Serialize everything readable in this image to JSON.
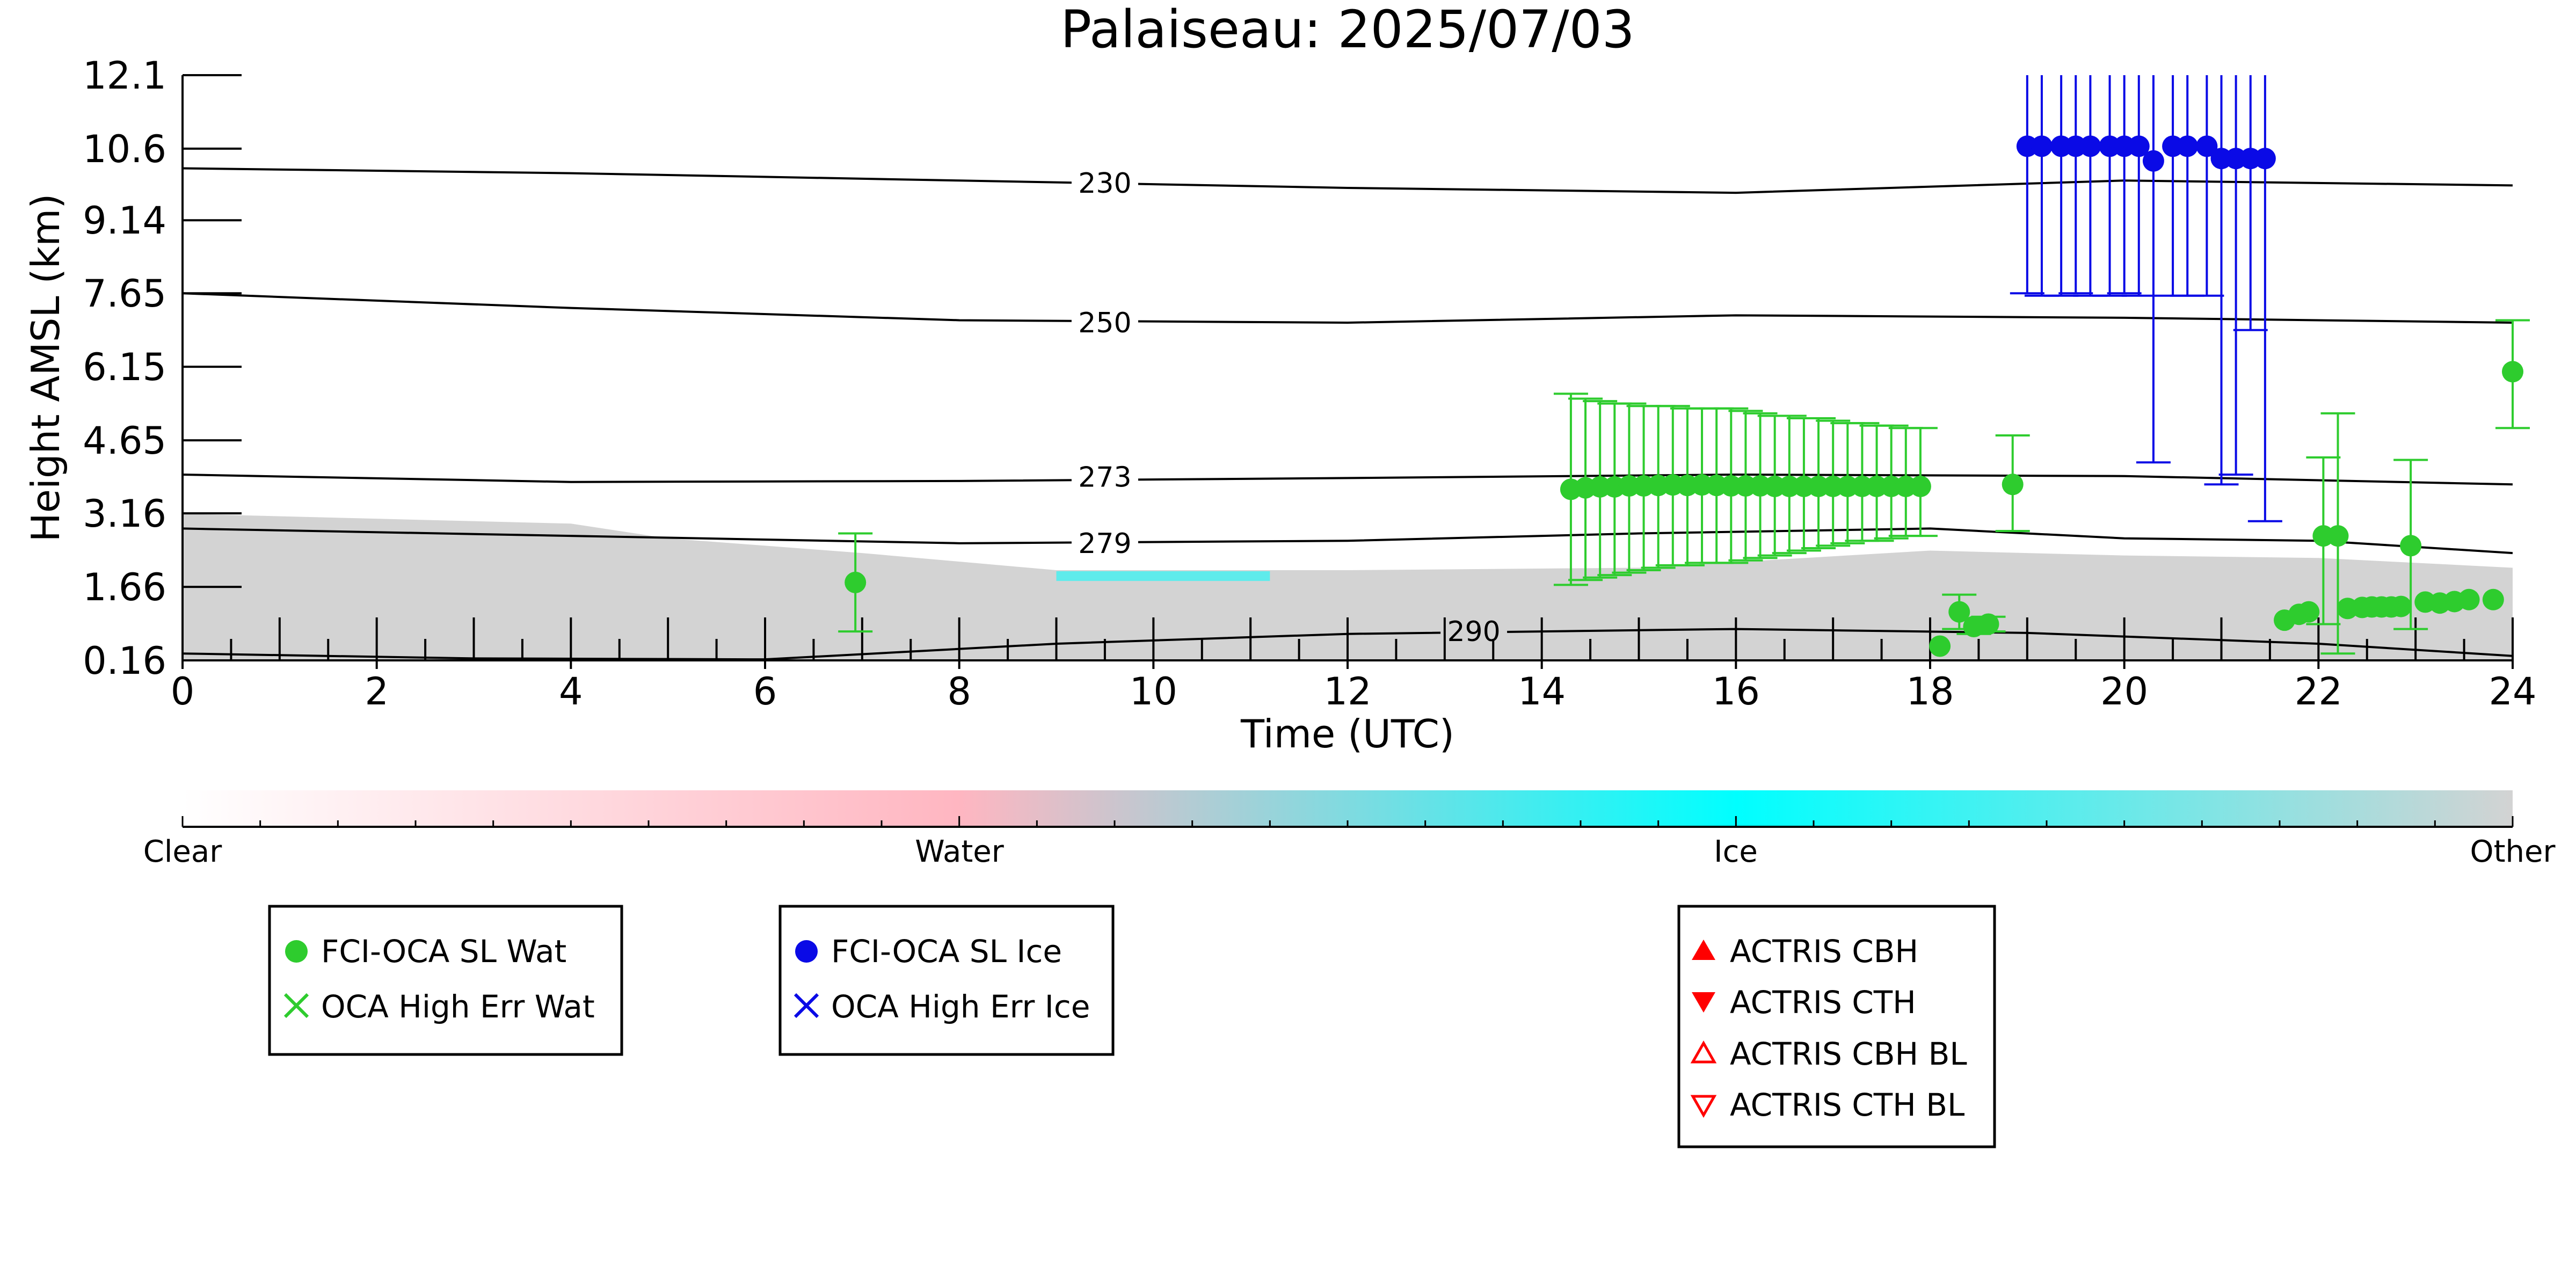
{
  "chart_data": {
    "type": "scatter",
    "title": "Palaiseau: 2025/07/03",
    "xlabel": "Time (UTC)",
    "ylabel": "Height AMSL (km)",
    "xlim": [
      0,
      24
    ],
    "ylim": [
      0.16,
      12.1
    ],
    "x_ticks": [
      "0",
      "2",
      "4",
      "6",
      "8",
      "10",
      "12",
      "14",
      "16",
      "18",
      "20",
      "22",
      "24"
    ],
    "y_ticks": [
      "0.16",
      "1.66",
      "3.16",
      "4.65",
      "6.15",
      "7.65",
      "9.14",
      "10.6",
      "12.1"
    ],
    "y_tick_values": [
      0.16,
      1.66,
      3.16,
      4.65,
      6.15,
      7.65,
      9.14,
      10.6,
      12.1
    ],
    "grid": false,
    "temperature_contours": [
      {
        "label": "230",
        "label_at": [
          9.5,
          9.9
        ],
        "points": [
          [
            0,
            10.2
          ],
          [
            4,
            10.1
          ],
          [
            8,
            9.95
          ],
          [
            12,
            9.8
          ],
          [
            16,
            9.7
          ],
          [
            20,
            9.95
          ],
          [
            24,
            9.85
          ]
        ]
      },
      {
        "label": "250",
        "label_at": [
          9.5,
          7.05
        ],
        "points": [
          [
            0,
            7.65
          ],
          [
            4,
            7.35
          ],
          [
            8,
            7.1
          ],
          [
            12,
            7.05
          ],
          [
            16,
            7.2
          ],
          [
            20,
            7.15
          ],
          [
            24,
            7.05
          ]
        ]
      },
      {
        "label": "273",
        "label_at": [
          9.5,
          3.9
        ],
        "points": [
          [
            0,
            3.95
          ],
          [
            4,
            3.8
          ],
          [
            8,
            3.82
          ],
          [
            12,
            3.88
          ],
          [
            16,
            3.95
          ],
          [
            20,
            3.92
          ],
          [
            24,
            3.75
          ]
        ]
      },
      {
        "label": "279",
        "label_at": [
          9.5,
          2.55
        ],
        "points": [
          [
            0,
            2.85
          ],
          [
            4,
            2.7
          ],
          [
            8,
            2.55
          ],
          [
            12,
            2.6
          ],
          [
            15,
            2.75
          ],
          [
            18,
            2.85
          ],
          [
            20,
            2.65
          ],
          [
            22,
            2.6
          ],
          [
            24,
            2.35
          ]
        ]
      },
      {
        "label": "290",
        "label_at": [
          13.3,
          0.75
        ],
        "points": [
          [
            0,
            0.3
          ],
          [
            3,
            0.2
          ],
          [
            6,
            0.18
          ],
          [
            9,
            0.5
          ],
          [
            12,
            0.7
          ],
          [
            16,
            0.8
          ],
          [
            19,
            0.72
          ],
          [
            22,
            0.5
          ],
          [
            24,
            0.25
          ]
        ]
      }
    ],
    "series": [
      {
        "name": "FCI-OCA SL Wat",
        "color": "#2ecc2e",
        "marker": "circle",
        "points": [
          {
            "x": 6.93,
            "y": 1.75,
            "lo": 0.75,
            "hi": 2.75
          },
          {
            "x": 14.3,
            "y": 3.65,
            "lo": 1.7,
            "hi": 5.6
          },
          {
            "x": 14.45,
            "y": 3.68,
            "lo": 1.8,
            "hi": 5.5
          },
          {
            "x": 14.6,
            "y": 3.7,
            "lo": 1.85,
            "hi": 5.45
          },
          {
            "x": 14.75,
            "y": 3.7,
            "lo": 1.9,
            "hi": 5.4
          },
          {
            "x": 14.9,
            "y": 3.72,
            "lo": 1.95,
            "hi": 5.4
          },
          {
            "x": 15.05,
            "y": 3.72,
            "lo": 2.0,
            "hi": 5.35
          },
          {
            "x": 15.2,
            "y": 3.73,
            "lo": 2.05,
            "hi": 5.35
          },
          {
            "x": 15.35,
            "y": 3.74,
            "lo": 2.1,
            "hi": 5.35
          },
          {
            "x": 15.5,
            "y": 3.73,
            "lo": 2.1,
            "hi": 5.3
          },
          {
            "x": 15.65,
            "y": 3.74,
            "lo": 2.15,
            "hi": 5.3
          },
          {
            "x": 15.8,
            "y": 3.73,
            "lo": 2.15,
            "hi": 5.3
          },
          {
            "x": 15.95,
            "y": 3.72,
            "lo": 2.15,
            "hi": 5.3
          },
          {
            "x": 16.1,
            "y": 3.72,
            "lo": 2.2,
            "hi": 5.25
          },
          {
            "x": 16.25,
            "y": 3.72,
            "lo": 2.25,
            "hi": 5.2
          },
          {
            "x": 16.4,
            "y": 3.71,
            "lo": 2.3,
            "hi": 5.15
          },
          {
            "x": 16.55,
            "y": 3.71,
            "lo": 2.35,
            "hi": 5.15
          },
          {
            "x": 16.7,
            "y": 3.71,
            "lo": 2.4,
            "hi": 5.1
          },
          {
            "x": 16.85,
            "y": 3.71,
            "lo": 2.45,
            "hi": 5.1
          },
          {
            "x": 17.0,
            "y": 3.71,
            "lo": 2.5,
            "hi": 5.05
          },
          {
            "x": 17.15,
            "y": 3.71,
            "lo": 2.55,
            "hi": 5.0
          },
          {
            "x": 17.3,
            "y": 3.71,
            "lo": 2.6,
            "hi": 5.0
          },
          {
            "x": 17.45,
            "y": 3.71,
            "lo": 2.6,
            "hi": 4.95
          },
          {
            "x": 17.6,
            "y": 3.71,
            "lo": 2.65,
            "hi": 4.95
          },
          {
            "x": 17.75,
            "y": 3.71,
            "lo": 2.7,
            "hi": 4.9
          },
          {
            "x": 17.9,
            "y": 3.71,
            "lo": 2.7,
            "hi": 4.9
          },
          {
            "x": 18.1,
            "y": 0.45
          },
          {
            "x": 18.3,
            "y": 1.15,
            "lo": 0.8,
            "hi": 1.5
          },
          {
            "x": 18.45,
            "y": 0.85,
            "lo": 0.7,
            "hi": 1.0
          },
          {
            "x": 18.6,
            "y": 0.9,
            "lo": 0.75,
            "hi": 1.05
          },
          {
            "x": 18.85,
            "y": 3.75,
            "lo": 2.8,
            "hi": 4.75
          },
          {
            "x": 21.65,
            "y": 0.98
          },
          {
            "x": 21.8,
            "y": 1.1
          },
          {
            "x": 21.9,
            "y": 1.15
          },
          {
            "x": 22.05,
            "y": 2.7,
            "lo": 0.9,
            "hi": 4.3
          },
          {
            "x": 22.2,
            "y": 2.7,
            "lo": 0.3,
            "hi": 5.2
          },
          {
            "x": 22.3,
            "y": 1.22
          },
          {
            "x": 22.45,
            "y": 1.24
          },
          {
            "x": 22.55,
            "y": 1.25
          },
          {
            "x": 22.65,
            "y": 1.25
          },
          {
            "x": 22.75,
            "y": 1.25
          },
          {
            "x": 22.85,
            "y": 1.26
          },
          {
            "x": 22.95,
            "y": 2.5,
            "lo": 0.8,
            "hi": 4.25
          },
          {
            "x": 23.1,
            "y": 1.35
          },
          {
            "x": 23.25,
            "y": 1.33
          },
          {
            "x": 23.4,
            "y": 1.36
          },
          {
            "x": 23.55,
            "y": 1.4
          },
          {
            "x": 23.8,
            "y": 1.4
          },
          {
            "x": 24.0,
            "y": 6.05,
            "lo": 4.9,
            "hi": 7.1
          }
        ]
      },
      {
        "name": "FCI-OCA SL Ice",
        "color": "#0a0ae6",
        "marker": "circle",
        "points": [
          {
            "x": 19.0,
            "y": 10.65,
            "lo": 7.65,
            "hi": 12.1
          },
          {
            "x": 19.15,
            "y": 10.65,
            "lo": 7.6,
            "hi": 12.1
          },
          {
            "x": 19.35,
            "y": 10.65,
            "lo": 7.6,
            "hi": 12.1
          },
          {
            "x": 19.5,
            "y": 10.65,
            "lo": 7.65,
            "hi": 12.1
          },
          {
            "x": 19.65,
            "y": 10.65,
            "lo": 7.6,
            "hi": 12.1
          },
          {
            "x": 19.85,
            "y": 10.65,
            "lo": 7.6,
            "hi": 12.1
          },
          {
            "x": 20.0,
            "y": 10.65,
            "lo": 7.65,
            "hi": 12.1
          },
          {
            "x": 20.15,
            "y": 10.65,
            "lo": 7.6,
            "hi": 12.1
          },
          {
            "x": 20.3,
            "y": 10.35,
            "lo": 4.2,
            "hi": 12.1
          },
          {
            "x": 20.5,
            "y": 10.65,
            "lo": 7.6,
            "hi": 12.1
          },
          {
            "x": 20.65,
            "y": 10.65,
            "lo": 7.6,
            "hi": 12.1
          },
          {
            "x": 20.85,
            "y": 10.65,
            "lo": 7.6,
            "hi": 12.1
          },
          {
            "x": 21.0,
            "y": 10.4,
            "lo": 3.75,
            "hi": 12.1
          },
          {
            "x": 21.15,
            "y": 10.4,
            "lo": 3.95,
            "hi": 12.1
          },
          {
            "x": 21.3,
            "y": 10.4,
            "lo": 6.9,
            "hi": 12.1
          },
          {
            "x": 21.45,
            "y": 10.4,
            "lo": 3.0,
            "hi": 12.1
          }
        ]
      }
    ],
    "colorbar": {
      "labels": [
        "Clear",
        "Water",
        "Ice",
        "Other"
      ],
      "stops": [
        "#ffffff",
        "#ffb6c1",
        "#00ffff",
        "#d3d3d3"
      ]
    },
    "legends": [
      {
        "items": [
          {
            "label": "FCI-OCA SL Wat",
            "marker": "circle",
            "color": "#2ecc2e"
          },
          {
            "label": "OCA High Err Wat",
            "marker": "x",
            "color": "#2ecc2e"
          }
        ]
      },
      {
        "items": [
          {
            "label": "FCI-OCA SL Ice",
            "marker": "circle",
            "color": "#0a0ae6"
          },
          {
            "label": "OCA High Err Ice",
            "marker": "x",
            "color": "#0a0ae6"
          }
        ]
      },
      {
        "items": [
          {
            "label": "ACTRIS CBH",
            "marker": "triangle-up",
            "color": "#ff0000"
          },
          {
            "label": "ACTRIS CTH",
            "marker": "triangle-down",
            "color": "#ff0000"
          },
          {
            "label": "ACTRIS CBH BL",
            "marker": "triangle-up-open",
            "color": "#ff0000"
          },
          {
            "label": "ACTRIS CTH BL",
            "marker": "triangle-down-open",
            "color": "#ff0000"
          }
        ]
      }
    ],
    "background_color": "#d3d3d3",
    "ice_color": "#00ffff"
  }
}
